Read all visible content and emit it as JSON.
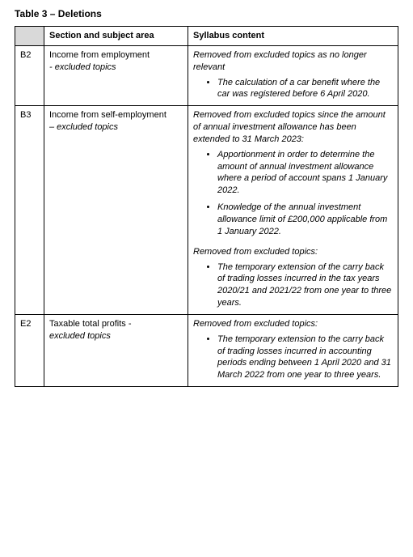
{
  "title": "Table 3 – Deletions",
  "headers": {
    "code": "",
    "section": "Section and subject area",
    "content": "Syllabus content"
  },
  "rows": {
    "b2": {
      "code": "B2",
      "section_line1": "Income from employment",
      "section_line2": "- excluded topics",
      "intro": "Removed from excluded topics as no longer relevant",
      "bullet1": "The calculation of a car benefit where the car was registered before 6 April 2020."
    },
    "b3": {
      "code": "B3",
      "section_line1": "Income from self-employment",
      "section_line2": "– excluded topics",
      "intro1": "Removed from excluded topics since the amount of annual investment allowance has been extended to 31 March 2023:",
      "bullet1": "Apportionment in order to determine the amount of annual investment allowance where a period of account spans 1 January 2022.",
      "bullet2": "Knowledge of the annual investment allowance limit of £200,000 applicable from 1 January 2022.",
      "intro2": "Removed from excluded topics:",
      "bullet3": "The temporary extension of the carry back of trading losses incurred in the tax years 2020/21 and 2021/22 from one year to three years."
    },
    "e2": {
      "code": "E2",
      "section_line1": "Taxable total profits -",
      "section_line2": "excluded topics",
      "intro": "Removed from excluded topics:",
      "bullet1": "The temporary extension to the carry back of trading losses incurred in accounting periods ending between 1 April 2020 and 31 March 2022 from one year to three years."
    }
  }
}
